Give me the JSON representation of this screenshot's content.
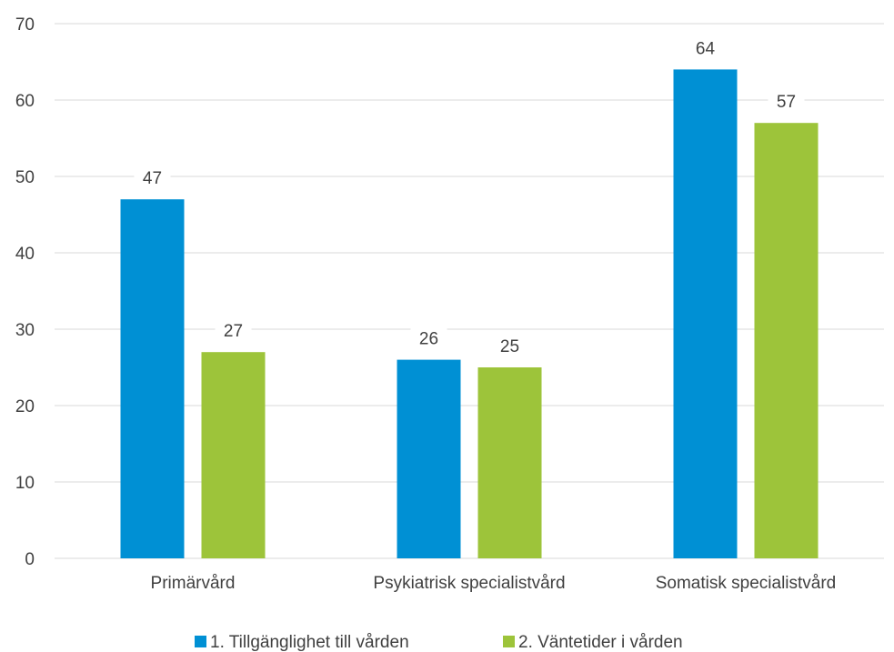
{
  "chart_data": {
    "type": "bar",
    "categories": [
      "Primärvård",
      "Psykiatrisk specialistvård",
      "Somatisk specialistvård"
    ],
    "series": [
      {
        "name": "1. Tillgänglighet till vården",
        "values": [
          47,
          26,
          64
        ],
        "color": "#0090d4"
      },
      {
        "name": "2. Väntetider i vården",
        "values": [
          27,
          25,
          57
        ],
        "color": "#9dc43a"
      }
    ],
    "ylim": [
      0,
      70
    ],
    "yticks": [
      0,
      10,
      20,
      30,
      40,
      50,
      60,
      70
    ],
    "grid": true,
    "legend": "bottom",
    "data_labels": true
  }
}
